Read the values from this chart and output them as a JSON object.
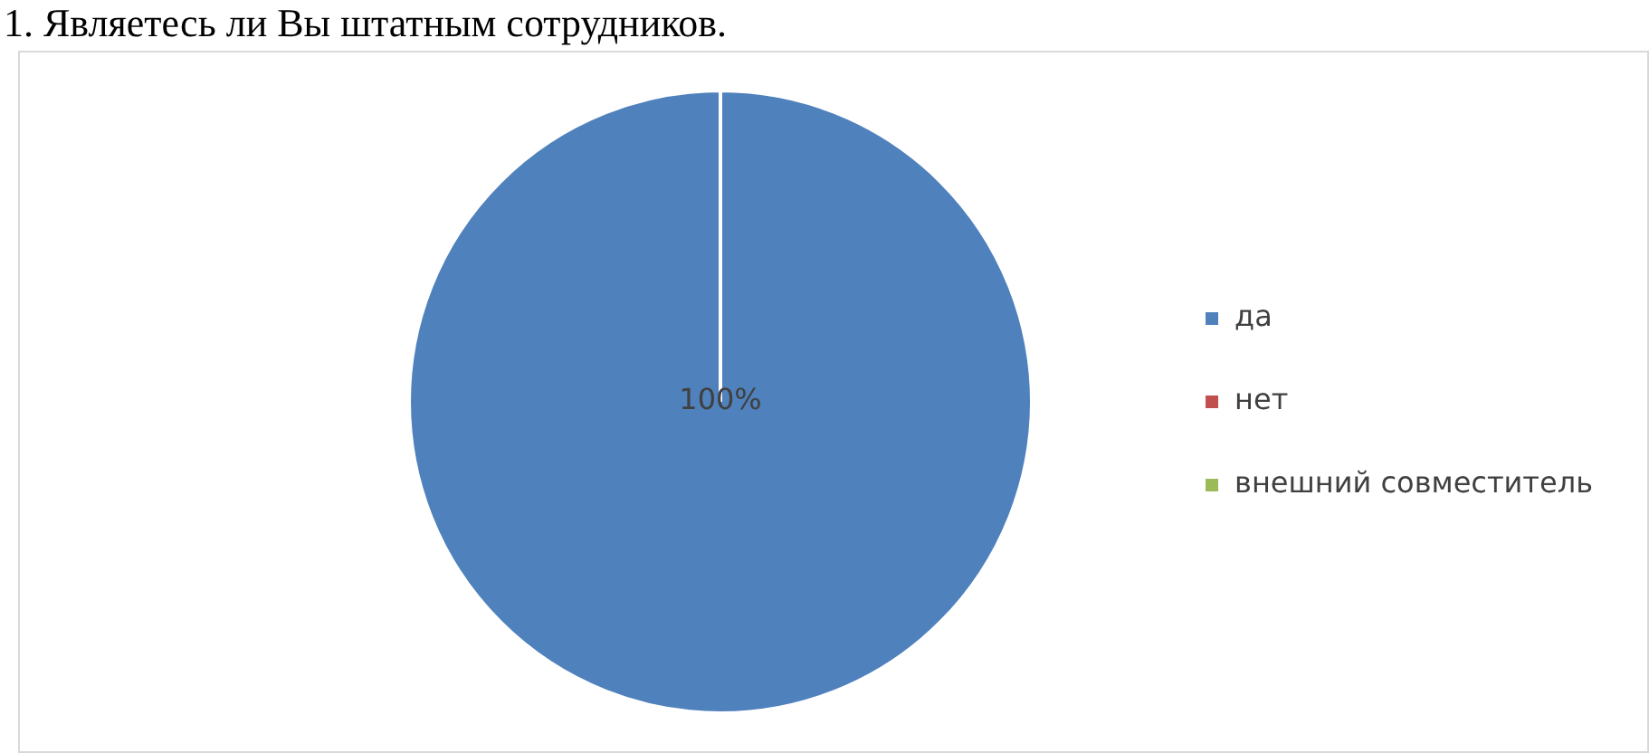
{
  "chart_data": {
    "type": "pie",
    "title": "1. Являетесь ли Вы штатным сотрудников.",
    "categories": [
      "да",
      "нет",
      "внешний совместитель"
    ],
    "values": [
      100,
      0,
      0
    ],
    "colors": [
      "#4f81bd",
      "#c0504d",
      "#9bbb59"
    ],
    "value_labels": [
      "100%",
      null,
      null
    ],
    "legend": "right"
  }
}
